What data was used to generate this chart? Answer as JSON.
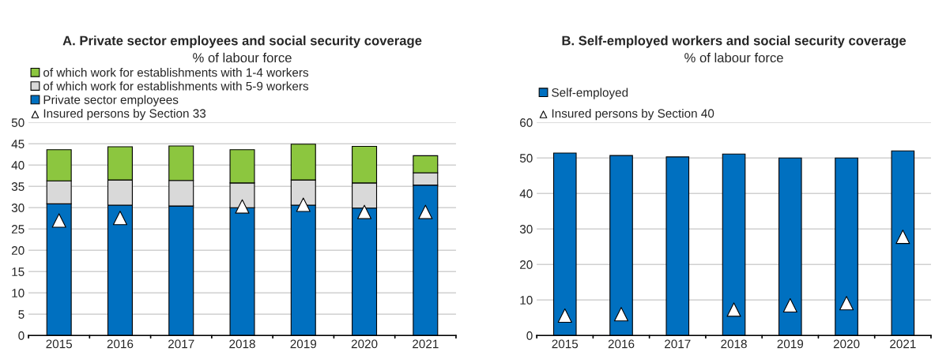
{
  "chart_data": [
    {
      "type": "bar",
      "title": "A. Private sector employees and social security coverage",
      "subtitle": "% of labour force",
      "categories": [
        "2015",
        "2016",
        "2017",
        "2018",
        "2019",
        "2020",
        "2021"
      ],
      "stacked": true,
      "ylim": [
        0,
        50
      ],
      "yticks": [
        0,
        5,
        10,
        15,
        20,
        25,
        30,
        35,
        40,
        45,
        50
      ],
      "grid": "y",
      "legend": "top",
      "series": [
        {
          "name": "Private sector employees",
          "color": "#0070c0",
          "values": [
            30.9,
            30.6,
            30.4,
            30.0,
            30.6,
            29.9,
            35.3
          ]
        },
        {
          "name": "of which work for establishments with 5-9 workers",
          "color": "#d9d9d9",
          "values": [
            5.4,
            5.9,
            6.0,
            5.8,
            5.9,
            5.9,
            2.9
          ]
        },
        {
          "name": "of which work for establishments with 1-4 workers",
          "color": "#8cc63f",
          "values": [
            7.3,
            7.8,
            8.1,
            7.8,
            8.4,
            8.6,
            4.0
          ]
        },
        {
          "name": "Insured persons by Section 33",
          "type": "scatter",
          "marker": "triangle",
          "color": "#ffffff",
          "values": [
            27.0,
            27.6,
            null,
            30.3,
            30.7,
            29.0,
            29.0
          ]
        }
      ]
    },
    {
      "type": "bar",
      "title": "B. Self-employed workers and social security coverage",
      "subtitle": "% of labour force",
      "categories": [
        "2015",
        "2016",
        "2017",
        "2018",
        "2019",
        "2020",
        "2021"
      ],
      "ylim": [
        0,
        60
      ],
      "yticks": [
        0,
        10,
        20,
        30,
        40,
        50,
        60
      ],
      "grid": "y",
      "legend": "top",
      "series": [
        {
          "name": "Self-employed",
          "color": "#0070c0",
          "values": [
            51.4,
            50.7,
            50.3,
            51.1,
            50.0,
            50.0,
            52.0
          ]
        },
        {
          "name": "Insured persons by Section 40",
          "type": "scatter",
          "marker": "triangle",
          "color": "#ffffff",
          "values": [
            5.6,
            6.0,
            null,
            7.3,
            8.5,
            9.1,
            27.8
          ]
        }
      ]
    }
  ]
}
